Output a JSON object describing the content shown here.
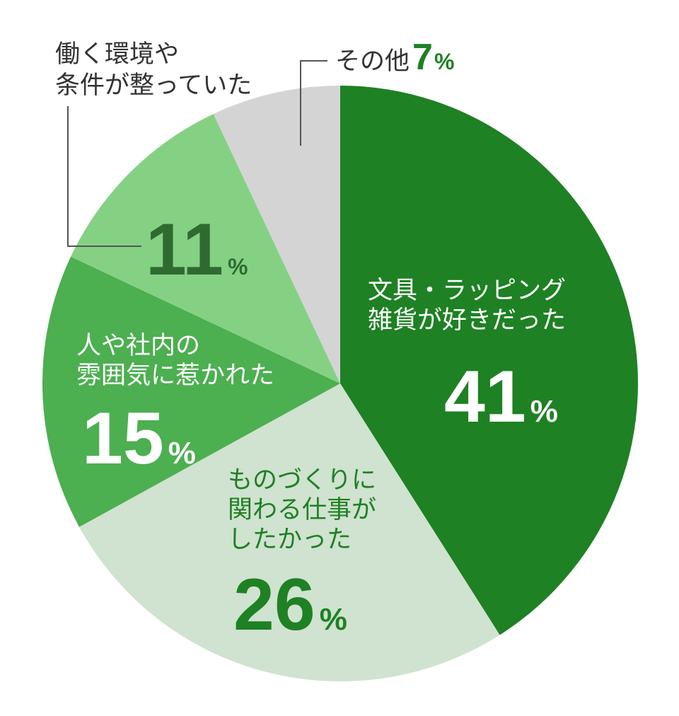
{
  "chart_data": {
    "type": "pie",
    "slices": [
      {
        "label_lines": [
          "文具・ラッピング",
          "雑貨が好きだった"
        ],
        "value": 41,
        "percent_suffix": "%",
        "color": "#1e8123",
        "text_color": "#ffffff"
      },
      {
        "label_lines": [
          "ものづくりに",
          "関わる仕事が",
          "したかった"
        ],
        "value": 26,
        "percent_suffix": "%",
        "color": "#d0e2d0",
        "text_color": "#1e8123"
      },
      {
        "label_lines": [
          "人や社内の",
          "雰囲気に惹かれた"
        ],
        "value": 15,
        "percent_suffix": "%",
        "color": "#4caf50",
        "text_color": "#ffffff"
      },
      {
        "label_lines": [
          "働く環境や",
          "条件が整っていた"
        ],
        "value": 11,
        "percent_suffix": "%",
        "color": "#84d184",
        "text_color": "#2f6b30"
      },
      {
        "label_lines": [
          "その他"
        ],
        "value": 7,
        "percent_suffix": "%",
        "color": "#d4d4d4",
        "text_color": "#1e8123"
      }
    ],
    "start_angle_deg": 0,
    "direction": "clockwise",
    "label_color_dark": "#333333",
    "leader_line_color": "#555555"
  }
}
